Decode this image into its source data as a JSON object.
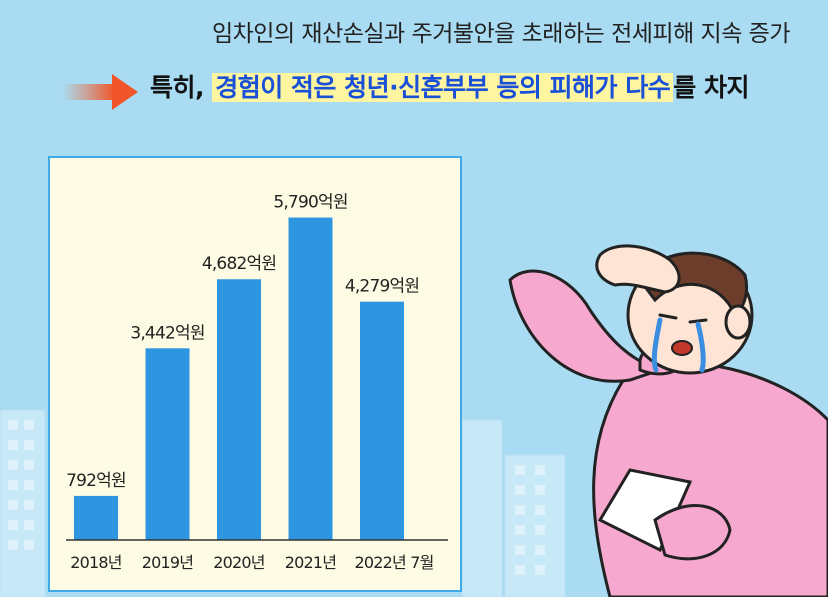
{
  "header": {
    "headline": "임차인의 재산손실과 주거불안을 초래하는 전세피해 지속 증가",
    "sub_prefix": "특히,",
    "sub_highlight": "경험이 적은 청년·신혼부부 등의 피해가 다수",
    "sub_suffix": "를 차지"
  },
  "colors": {
    "bar": "#2e96e0",
    "panel": "#fdfbe3",
    "panel_border": "#3fa9e6",
    "highlight": "#fdf5a0",
    "accent_text": "#1a4fd8",
    "background": "#a9dcf2"
  },
  "icons": {
    "arrow": "arrow-right-icon",
    "illustration": "crying-person-illustration"
  },
  "chart_data": {
    "type": "bar",
    "categories": [
      "2018년",
      "2019년",
      "2020년",
      "2021년",
      "2022년 7월"
    ],
    "values": [
      792,
      3442,
      4682,
      5790,
      4279
    ],
    "data_labels": [
      "792억원",
      "3,442억원",
      "4,682억원",
      "5,790억원",
      "4,279억원"
    ],
    "unit": "억원",
    "ylim": [
      0,
      6500
    ],
    "title": "",
    "xlabel": "",
    "ylabel": "",
    "grid": false
  }
}
